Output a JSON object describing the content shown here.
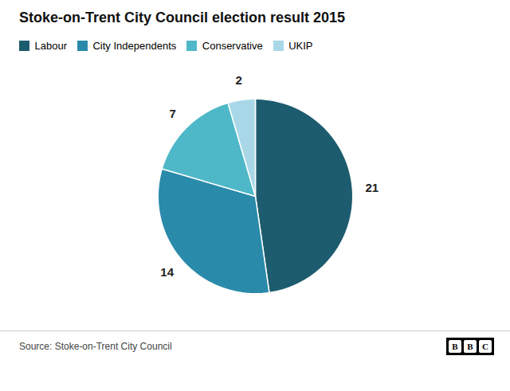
{
  "chart_data": {
    "type": "pie",
    "title": "Stoke-on-Trent City Council election result 2015",
    "categories": [
      "Labour",
      "City Independents",
      "Conservative",
      "UKIP"
    ],
    "values": [
      21,
      14,
      7,
      2
    ],
    "colors": [
      "#1d5c6e",
      "#2a8aaa",
      "#4eb8c8",
      "#a8d8e8"
    ],
    "data_labels": true,
    "legend": "top-left",
    "annotations": [
      "Source: Stoke-on-Trent City Council",
      "BBC"
    ]
  }
}
